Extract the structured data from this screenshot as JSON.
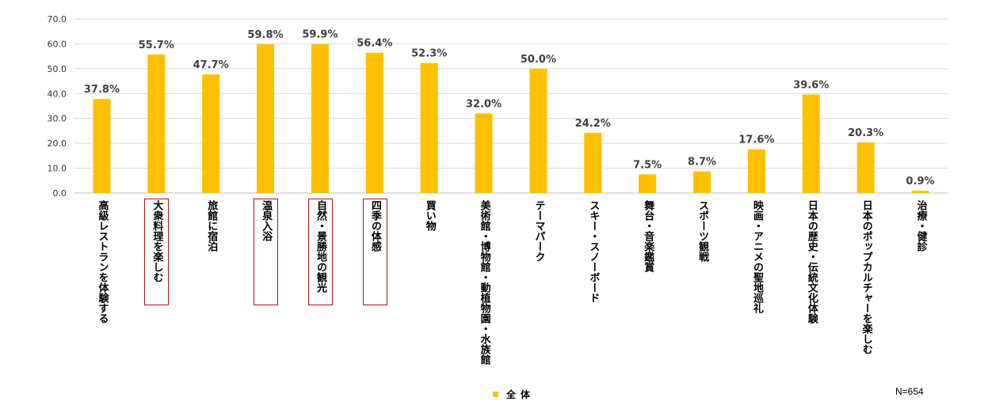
{
  "chart_data": {
    "type": "bar",
    "ylim": [
      0,
      70
    ],
    "yticks": [
      "0.0",
      "10.0",
      "20.0",
      "30.0",
      "40.0",
      "50.0",
      "60.0",
      "70.0"
    ],
    "grid": true,
    "bar_color": "#ffc000",
    "highlight_color": "#a0191e",
    "categories": [
      "高級レストランを体験する",
      "大衆料理を楽しむ",
      "旅館に宿泊",
      "温泉入浴",
      "自然・景勝地の観光",
      "四季の体感",
      "買い物",
      "美術館・博物館・動植物園・水族館",
      "テーマパーク",
      "スキー・スノーボード",
      "舞台・音楽鑑賞",
      "スポーツ観戦",
      "映画・アニメの聖地巡礼",
      "日本の歴史・伝統文化体験",
      "日本のポップカルチャーを楽しむ",
      "治療・健診"
    ],
    "values": [
      37.8,
      55.7,
      47.7,
      59.8,
      59.9,
      56.4,
      52.3,
      32.0,
      50.0,
      24.2,
      7.5,
      8.7,
      17.6,
      39.6,
      20.3,
      0.9
    ],
    "value_labels": [
      "37.8%",
      "55.7%",
      "47.7%",
      "59.8%",
      "59.9%",
      "56.4%",
      "52.3%",
      "32.0%",
      "50.0%",
      "24.2%",
      "7.5%",
      "8.7%",
      "17.6%",
      "39.6%",
      "20.3%",
      "0.9%"
    ],
    "highlighted": [
      false,
      true,
      false,
      true,
      true,
      true,
      false,
      false,
      false,
      false,
      false,
      false,
      false,
      false,
      false,
      false
    ],
    "legend": "全体",
    "note": "N=654"
  }
}
